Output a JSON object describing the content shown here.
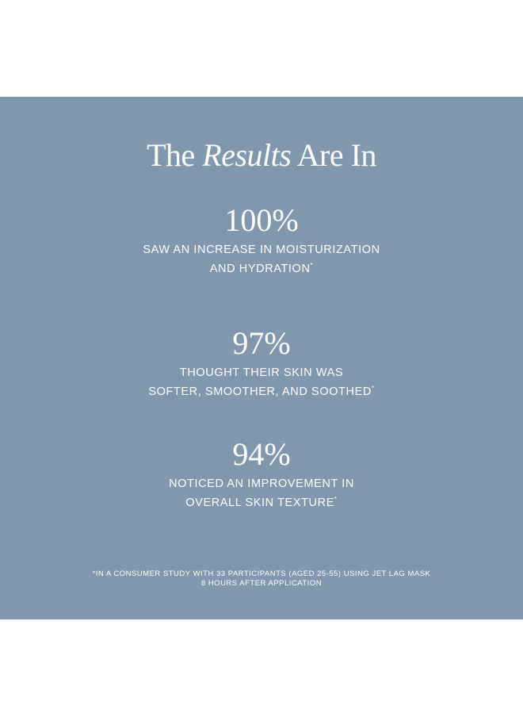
{
  "colors": {
    "panel": "#8097ad",
    "text": "#ffffff"
  },
  "title": {
    "before": "The ",
    "italic": "Results",
    "after": " Are In"
  },
  "stats": [
    {
      "value": "100%",
      "line1": "SAW AN INCREASE IN MOISTURIZATION",
      "line2": "AND HYDRATION",
      "mark": "*"
    },
    {
      "value": "97%",
      "line1": "THOUGHT THEIR SKIN WAS",
      "line2": "SOFTER, SMOOTHER, AND SOOTHED",
      "mark": "*"
    },
    {
      "value": "94%",
      "line1": "NOTICED AN IMPROVEMENT IN",
      "line2": "OVERALL SKIN TEXTURE",
      "mark": "*"
    }
  ],
  "footnote": {
    "line1": "*IN A CONSUMER STUDY WITH 33 PARTICIPANTS (AGED 25-55) USING JET LAG MASK",
    "line2": "8 HOURS AFTER APPLICATION"
  }
}
